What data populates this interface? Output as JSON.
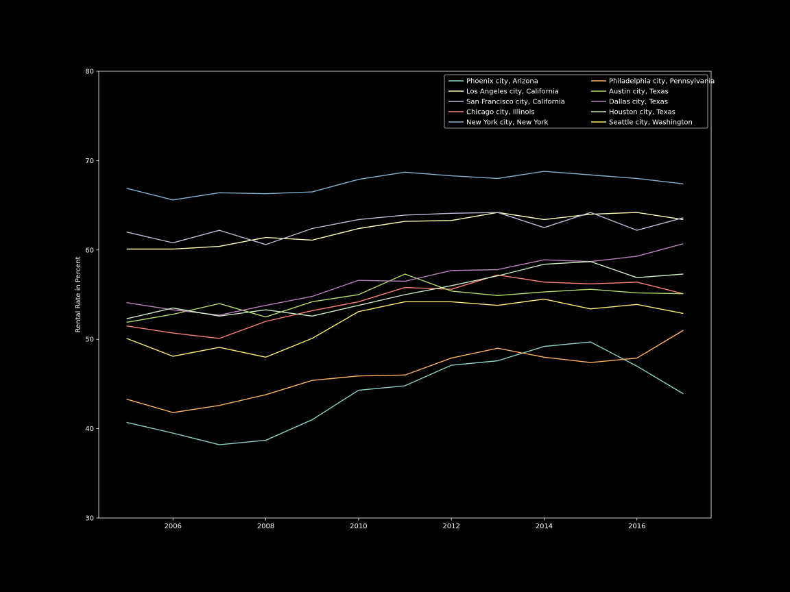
{
  "chart_data": {
    "type": "line",
    "title": "",
    "xlabel": "",
    "ylabel": "Rental Rate in Percent",
    "xlim": [
      2004.4,
      2017.6
    ],
    "ylim": [
      30,
      80
    ],
    "xticks": [
      2006,
      2008,
      2010,
      2012,
      2014,
      2016
    ],
    "yticks": [
      30,
      40,
      50,
      60,
      70,
      80
    ],
    "grid": false,
    "legend_position": "top-right",
    "legend_columns": 2,
    "background": "#000000",
    "axis_color": "#ffffff",
    "x": [
      2005,
      2006,
      2007,
      2008,
      2009,
      2010,
      2011,
      2012,
      2013,
      2014,
      2015,
      2016,
      2017
    ],
    "series": [
      {
        "name": "Phoenix city, Arizona",
        "color": "#8dd3c7",
        "values": [
          40.7,
          39.5,
          38.2,
          38.7,
          41.0,
          44.3,
          44.8,
          47.1,
          47.6,
          49.2,
          49.7,
          47.0,
          43.9
        ]
      },
      {
        "name": "Los Angeles city, California",
        "color": "#feffb3",
        "values": [
          60.1,
          60.1,
          60.4,
          61.4,
          61.1,
          62.4,
          63.2,
          63.3,
          64.2,
          63.4,
          64.0,
          64.2,
          63.4
        ]
      },
      {
        "name": "San Francisco city, California",
        "color": "#bfbbd9",
        "values": [
          62.0,
          60.8,
          62.2,
          60.6,
          62.4,
          63.4,
          63.9,
          64.1,
          64.2,
          62.5,
          64.2,
          62.2,
          63.6
        ]
      },
      {
        "name": "Chicago city, Illinois",
        "color": "#fa8174",
        "values": [
          51.5,
          50.7,
          50.1,
          52.0,
          53.2,
          54.2,
          55.8,
          55.6,
          57.2,
          56.4,
          56.2,
          56.4,
          55.1
        ]
      },
      {
        "name": "New York city, New York",
        "color": "#81b1d2",
        "values": [
          66.9,
          65.6,
          66.4,
          66.3,
          66.5,
          67.9,
          68.7,
          68.3,
          68.0,
          68.8,
          68.4,
          68.0,
          67.4
        ]
      },
      {
        "name": "Philadelphia city, Pennsylvania",
        "color": "#fdb462",
        "values": [
          43.3,
          41.8,
          42.6,
          43.8,
          45.4,
          45.9,
          46.0,
          47.9,
          49.0,
          48.0,
          47.4,
          47.9,
          51.0
        ]
      },
      {
        "name": "Austin city, Texas",
        "color": "#b3de69",
        "values": [
          51.9,
          52.8,
          54.0,
          52.5,
          54.2,
          55.0,
          57.3,
          55.4,
          54.9,
          55.3,
          55.6,
          55.2,
          55.1
        ]
      },
      {
        "name": "Dallas city, Texas",
        "color": "#bc82bd",
        "values": [
          54.1,
          53.3,
          52.7,
          53.8,
          54.8,
          56.6,
          56.5,
          57.7,
          57.8,
          58.9,
          58.7,
          59.3,
          60.7
        ]
      },
      {
        "name": "Houston city, Texas",
        "color": "#ccebc4",
        "values": [
          52.3,
          53.5,
          52.6,
          53.3,
          52.6,
          53.8,
          55.0,
          56.0,
          57.1,
          58.4,
          58.7,
          56.9,
          57.3
        ]
      },
      {
        "name": "Seattle city, Washington",
        "color": "#ffed6f",
        "values": [
          50.1,
          48.1,
          49.1,
          48.0,
          50.1,
          53.1,
          54.2,
          54.2,
          53.8,
          54.5,
          53.4,
          53.9,
          52.9
        ]
      }
    ]
  }
}
